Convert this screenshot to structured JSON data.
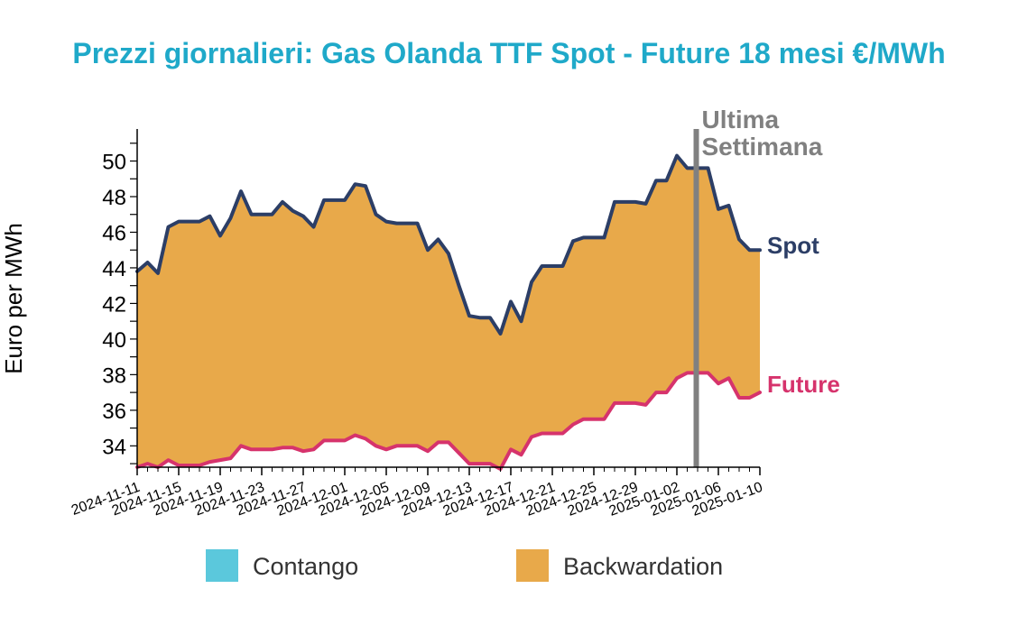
{
  "chart_data": {
    "type": "area",
    "title": "Prezzi giornalieri: Gas Olanda TTF Spot - Future 18 mesi €/MWh",
    "ylabel": "Euro per MWh",
    "ylim": [
      32.8,
      51.8
    ],
    "yticks": [
      34,
      36,
      38,
      40,
      42,
      44,
      46,
      48,
      50
    ],
    "x_start": "2024-11-11",
    "x_end": "2025-01-10",
    "xtick_labels": [
      "2024-11-11",
      "2024-11-15",
      "2024-11-19",
      "2024-11-23",
      "2024-11-27",
      "2024-12-01",
      "2024-12-05",
      "2024-12-09",
      "2024-12-13",
      "2024-12-17",
      "2024-12-21",
      "2024-12-25",
      "2024-12-29",
      "2025-01-02",
      "2025-01-06",
      "2025-01-10"
    ],
    "series": [
      {
        "name": "Spot",
        "color": "#2c3e66",
        "points": [
          [
            "2024-11-11",
            43.8
          ],
          [
            "2024-11-12",
            44.3
          ],
          [
            "2024-11-13",
            43.7
          ],
          [
            "2024-11-14",
            46.3
          ],
          [
            "2024-11-15",
            46.6
          ],
          [
            "2024-11-16",
            46.6
          ],
          [
            "2024-11-17",
            46.6
          ],
          [
            "2024-11-18",
            46.9
          ],
          [
            "2024-11-19",
            45.8
          ],
          [
            "2024-11-20",
            46.8
          ],
          [
            "2024-11-21",
            48.3
          ],
          [
            "2024-11-22",
            47.0
          ],
          [
            "2024-11-23",
            47.0
          ],
          [
            "2024-11-24",
            47.0
          ],
          [
            "2024-11-25",
            47.7
          ],
          [
            "2024-11-26",
            47.2
          ],
          [
            "2024-11-27",
            46.9
          ],
          [
            "2024-11-28",
            46.3
          ],
          [
            "2024-11-29",
            47.8
          ],
          [
            "2024-11-30",
            47.8
          ],
          [
            "2024-12-01",
            47.8
          ],
          [
            "2024-12-02",
            48.7
          ],
          [
            "2024-12-03",
            48.6
          ],
          [
            "2024-12-04",
            47.0
          ],
          [
            "2024-12-05",
            46.6
          ],
          [
            "2024-12-06",
            46.5
          ],
          [
            "2024-12-07",
            46.5
          ],
          [
            "2024-12-08",
            46.5
          ],
          [
            "2024-12-09",
            45.0
          ],
          [
            "2024-12-10",
            45.6
          ],
          [
            "2024-12-11",
            44.8
          ],
          [
            "2024-12-12",
            43.0
          ],
          [
            "2024-12-13",
            41.3
          ],
          [
            "2024-12-14",
            41.2
          ],
          [
            "2024-12-15",
            41.2
          ],
          [
            "2024-12-16",
            40.3
          ],
          [
            "2024-12-17",
            42.1
          ],
          [
            "2024-12-18",
            41.0
          ],
          [
            "2024-12-19",
            43.2
          ],
          [
            "2024-12-20",
            44.1
          ],
          [
            "2024-12-21",
            44.1
          ],
          [
            "2024-12-22",
            44.1
          ],
          [
            "2024-12-23",
            45.5
          ],
          [
            "2024-12-24",
            45.7
          ],
          [
            "2024-12-25",
            45.7
          ],
          [
            "2024-12-26",
            45.7
          ],
          [
            "2024-12-27",
            47.7
          ],
          [
            "2024-12-28",
            47.7
          ],
          [
            "2024-12-29",
            47.7
          ],
          [
            "2024-12-30",
            47.6
          ],
          [
            "2024-12-31",
            48.9
          ],
          [
            "2025-01-01",
            48.9
          ],
          [
            "2025-01-02",
            50.3
          ],
          [
            "2025-01-03",
            49.6
          ],
          [
            "2025-01-04",
            49.6
          ],
          [
            "2025-01-05",
            49.6
          ],
          [
            "2025-01-06",
            47.3
          ],
          [
            "2025-01-07",
            47.5
          ],
          [
            "2025-01-08",
            45.6
          ],
          [
            "2025-01-09",
            45.0
          ],
          [
            "2025-01-10",
            45.0
          ]
        ]
      },
      {
        "name": "Future",
        "color": "#d6336c",
        "points": [
          [
            "2024-11-11",
            32.8
          ],
          [
            "2024-11-12",
            33.0
          ],
          [
            "2024-11-13",
            32.8
          ],
          [
            "2024-11-14",
            33.2
          ],
          [
            "2024-11-15",
            32.9
          ],
          [
            "2024-11-16",
            32.9
          ],
          [
            "2024-11-17",
            32.9
          ],
          [
            "2024-11-18",
            33.1
          ],
          [
            "2024-11-19",
            33.2
          ],
          [
            "2024-11-20",
            33.3
          ],
          [
            "2024-11-21",
            34.0
          ],
          [
            "2024-11-22",
            33.8
          ],
          [
            "2024-11-23",
            33.8
          ],
          [
            "2024-11-24",
            33.8
          ],
          [
            "2024-11-25",
            33.9
          ],
          [
            "2024-11-26",
            33.9
          ],
          [
            "2024-11-27",
            33.7
          ],
          [
            "2024-11-28",
            33.8
          ],
          [
            "2024-11-29",
            34.3
          ],
          [
            "2024-11-30",
            34.3
          ],
          [
            "2024-12-01",
            34.3
          ],
          [
            "2024-12-02",
            34.6
          ],
          [
            "2024-12-03",
            34.4
          ],
          [
            "2024-12-04",
            34.0
          ],
          [
            "2024-12-05",
            33.8
          ],
          [
            "2024-12-06",
            34.0
          ],
          [
            "2024-12-07",
            34.0
          ],
          [
            "2024-12-08",
            34.0
          ],
          [
            "2024-12-09",
            33.7
          ],
          [
            "2024-12-10",
            34.2
          ],
          [
            "2024-12-11",
            34.2
          ],
          [
            "2024-12-12",
            33.6
          ],
          [
            "2024-12-13",
            33.0
          ],
          [
            "2024-12-14",
            33.0
          ],
          [
            "2024-12-15",
            33.0
          ],
          [
            "2024-12-16",
            32.7
          ],
          [
            "2024-12-17",
            33.8
          ],
          [
            "2024-12-18",
            33.5
          ],
          [
            "2024-12-19",
            34.5
          ],
          [
            "2024-12-20",
            34.7
          ],
          [
            "2024-12-21",
            34.7
          ],
          [
            "2024-12-22",
            34.7
          ],
          [
            "2024-12-23",
            35.2
          ],
          [
            "2024-12-24",
            35.5
          ],
          [
            "2024-12-25",
            35.5
          ],
          [
            "2024-12-26",
            35.5
          ],
          [
            "2024-12-27",
            36.4
          ],
          [
            "2024-12-28",
            36.4
          ],
          [
            "2024-12-29",
            36.4
          ],
          [
            "2024-12-30",
            36.3
          ],
          [
            "2024-12-31",
            37.0
          ],
          [
            "2025-01-01",
            37.0
          ],
          [
            "2025-01-02",
            37.8
          ],
          [
            "2025-01-03",
            38.1
          ],
          [
            "2025-01-04",
            38.1
          ],
          [
            "2025-01-05",
            38.1
          ],
          [
            "2025-01-06",
            37.5
          ],
          [
            "2025-01-07",
            37.8
          ],
          [
            "2025-01-08",
            36.7
          ],
          [
            "2025-01-09",
            36.7
          ],
          [
            "2025-01-10",
            37.0
          ]
        ]
      }
    ],
    "marker": {
      "date": "2025-01-03",
      "label_line1": "Ultima",
      "label_line2": "Settimana",
      "color": "#808080"
    },
    "legend": {
      "placement": "bottom",
      "items": [
        {
          "label": "Contango",
          "color": "#5bc8dc"
        },
        {
          "label": "Backwardation",
          "color": "#e8a94a"
        }
      ]
    },
    "grid": false,
    "title_color": "#1fa9c9"
  }
}
